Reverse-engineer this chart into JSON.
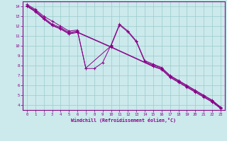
{
  "xlabel": "Windchill (Refroidissement éolien,°C)",
  "bg_color": "#cce9ec",
  "grid_color": "#99cccc",
  "line_color": "#880088",
  "spine_color": "#880088",
  "xlim": [
    -0.5,
    23.5
  ],
  "ylim": [
    3.5,
    14.5
  ],
  "xticks": [
    0,
    1,
    2,
    3,
    4,
    5,
    6,
    7,
    8,
    9,
    10,
    11,
    12,
    13,
    14,
    15,
    16,
    17,
    18,
    19,
    20,
    21,
    22,
    23
  ],
  "yticks": [
    4,
    5,
    6,
    7,
    8,
    9,
    10,
    11,
    12,
    13,
    14
  ],
  "lines": [
    {
      "x": [
        0,
        1,
        2,
        3,
        4,
        5,
        6,
        7,
        8,
        9,
        10,
        11,
        12,
        13,
        14,
        15,
        16,
        17,
        18,
        19,
        20,
        21,
        22,
        23
      ],
      "y": [
        14.2,
        13.7,
        13.0,
        12.5,
        12.0,
        11.5,
        11.6,
        7.7,
        7.7,
        8.3,
        10.1,
        12.2,
        11.5,
        10.5,
        8.5,
        8.15,
        7.8,
        7.0,
        6.5,
        6.0,
        5.5,
        5.0,
        4.5,
        3.8
      ]
    },
    {
      "x": [
        0,
        1,
        2,
        3,
        4,
        5,
        6,
        7,
        10,
        11,
        12,
        13,
        14,
        15,
        16,
        17,
        18,
        19,
        20,
        21,
        22,
        23
      ],
      "y": [
        14.1,
        13.6,
        12.85,
        12.2,
        11.85,
        11.35,
        11.5,
        7.75,
        10.0,
        12.1,
        11.4,
        10.4,
        8.4,
        8.05,
        7.75,
        6.95,
        6.45,
        5.95,
        5.45,
        4.95,
        4.45,
        3.75
      ]
    },
    {
      "x": [
        0,
        1,
        2,
        3,
        4,
        5,
        6,
        10,
        15,
        16,
        17,
        18,
        19,
        20,
        21,
        22,
        23
      ],
      "y": [
        14.05,
        13.5,
        12.75,
        12.1,
        11.75,
        11.25,
        11.4,
        9.9,
        7.95,
        7.65,
        6.85,
        6.35,
        5.85,
        5.35,
        4.85,
        4.35,
        3.7
      ]
    },
    {
      "x": [
        0,
        1,
        2,
        3,
        4,
        5,
        6,
        10,
        15,
        16,
        17,
        18,
        19,
        20,
        21,
        22,
        23
      ],
      "y": [
        14.0,
        13.45,
        12.7,
        12.05,
        11.7,
        11.2,
        11.35,
        9.85,
        7.9,
        7.6,
        6.8,
        6.3,
        5.8,
        5.3,
        4.8,
        4.3,
        3.65
      ]
    }
  ]
}
